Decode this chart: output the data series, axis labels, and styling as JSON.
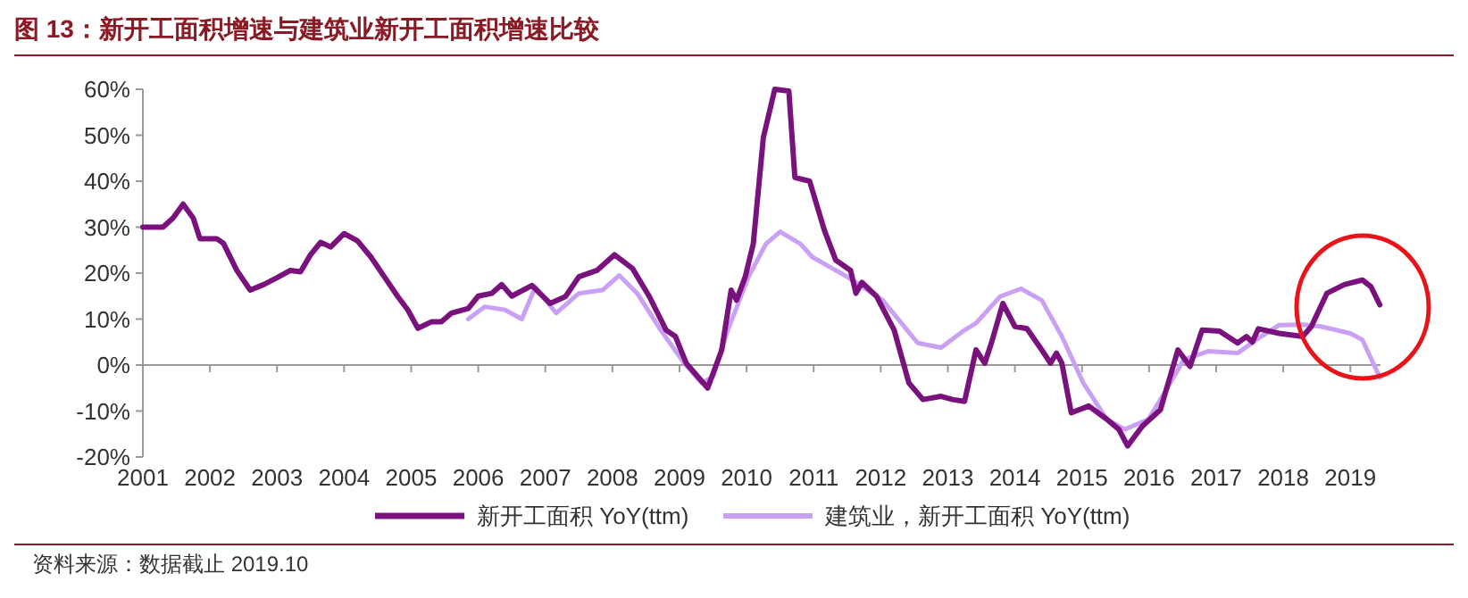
{
  "chart_data": {
    "type": "line",
    "title": "图 13：新开工面积增速与建筑业新开工面积增速比较",
    "annotations": [
      "资料来源：数据截止 2019.10"
    ],
    "xlim": [
      2001,
      2019.45
    ],
    "xticks": [
      2001,
      2002,
      2003,
      2004,
      2005,
      2006,
      2007,
      2008,
      2009,
      2010,
      2011,
      2012,
      2013,
      2014,
      2015,
      2016,
      2017,
      2018,
      2019
    ],
    "ylim": [
      -20,
      60
    ],
    "yticks": [
      {
        "value": -20,
        "label": "-20%"
      },
      {
        "value": -10,
        "label": "-10%"
      },
      {
        "value": 0,
        "label": "0%"
      },
      {
        "value": 10,
        "label": "10%"
      },
      {
        "value": 20,
        "label": "20%"
      },
      {
        "value": 30,
        "label": "30%"
      },
      {
        "value": 40,
        "label": "40%"
      },
      {
        "value": 50,
        "label": "50%"
      },
      {
        "value": 60,
        "label": "60%"
      }
    ],
    "legend": "bottom",
    "marker": "none",
    "line_style": "solid",
    "series": [
      {
        "name": "新开工面积 YoY(ttm)",
        "color": "#7a127e",
        "x": [
          2001,
          2001.3,
          2001.45,
          2001.6,
          2001.75,
          2001.85,
          2002.1,
          2002.2,
          2002.4,
          2002.6,
          2002.8,
          2003,
          2003.2,
          2003.35,
          2003.5,
          2003.65,
          2003.8,
          2004,
          2004.2,
          2004.4,
          2004.6,
          2004.8,
          2004.95,
          2005.1,
          2005.3,
          2005.45,
          2005.6,
          2005.85,
          2006,
          2006.2,
          2006.35,
          2006.5,
          2006.8,
          2007.07,
          2007.3,
          2007.5,
          2007.77,
          2008.03,
          2008.3,
          2008.55,
          2008.8,
          2008.94,
          2009.1,
          2009.42,
          2009.63,
          2009.77,
          2009.85,
          2009.98,
          2010.1,
          2010.25,
          2010.42,
          2010.63,
          2010.72,
          2010.94,
          2011.16,
          2011.33,
          2011.55,
          2011.63,
          2011.72,
          2011.94,
          2012.2,
          2012.42,
          2012.63,
          2012.9,
          2013.07,
          2013.25,
          2013.42,
          2013.55,
          2013.65,
          2013.82,
          2014,
          2014.18,
          2014.4,
          2014.53,
          2014.62,
          2014.7,
          2014.84,
          2015.1,
          2015.37,
          2015.55,
          2015.68,
          2015.9,
          2016.17,
          2016.43,
          2016.61,
          2016.79,
          2017.05,
          2017.32,
          2017.45,
          2017.54,
          2017.63,
          2017.94,
          2018.29,
          2018.42,
          2018.65,
          2018.91,
          2019.18,
          2019.31,
          2019.44
        ],
        "values": [
          30,
          30,
          32,
          35,
          32,
          27.5,
          27.5,
          26.5,
          20.6,
          16.3,
          17.5,
          19,
          20.6,
          20.3,
          24,
          26.7,
          25.7,
          28.6,
          27,
          23.5,
          19.2,
          14.9,
          12,
          8,
          9.4,
          9.4,
          11.3,
          12.3,
          15,
          15.6,
          17.5,
          15,
          17.3,
          13.4,
          14.9,
          19.2,
          20.6,
          24,
          21,
          14.9,
          7.6,
          6.2,
          0.4,
          -5,
          3.3,
          16.3,
          14.1,
          19.2,
          26.4,
          49.5,
          60,
          59.6,
          40.8,
          40,
          29.3,
          22.8,
          20.6,
          15.6,
          18,
          14.9,
          7.6,
          -3.9,
          -7.5,
          -6.8,
          -7.5,
          -7.9,
          3.3,
          0.4,
          4.8,
          13.4,
          8.4,
          7.9,
          3.3,
          0.4,
          2.6,
          0.4,
          -10.4,
          -8.9,
          -11.8,
          -14,
          -17.6,
          -13.3,
          -9.7,
          3.3,
          -0.3,
          7.6,
          7.4,
          4.8,
          6.2,
          5,
          7.9,
          6.9,
          6.2,
          8.4,
          15.6,
          17.5,
          18.5,
          17,
          13.1
        ]
      },
      {
        "name": "建筑业，新开工面积 YoY(ttm)",
        "color": "#c9a0f3",
        "x": [
          2005.85,
          2006.1,
          2006.4,
          2006.65,
          2006.85,
          2007.16,
          2007.5,
          2007.85,
          2008.1,
          2008.37,
          2008.72,
          2009.07,
          2009.33,
          2009.5,
          2009.72,
          2010.03,
          2010.29,
          2010.5,
          2010.8,
          2010.98,
          2011.5,
          2012.03,
          2012.55,
          2012.9,
          2013.25,
          2013.42,
          2013.78,
          2014.09,
          2014.4,
          2014.7,
          2015.02,
          2015.37,
          2015.64,
          2015.99,
          2016.26,
          2016.52,
          2016.88,
          2017.32,
          2017.67,
          2017.94,
          2018.29,
          2018.56,
          2019,
          2019.18,
          2019.44
        ],
        "values": [
          10,
          12.7,
          12,
          10,
          17,
          11.3,
          15.6,
          16.3,
          19.5,
          15.6,
          7.6,
          0.4,
          -3.9,
          -2.5,
          7.6,
          19.2,
          26.4,
          29,
          26.4,
          23.5,
          19.2,
          14.1,
          4.8,
          3.8,
          7.6,
          9.1,
          14.9,
          16.6,
          14.1,
          6.2,
          -3.9,
          -11.8,
          -14,
          -11.8,
          -5.3,
          1.2,
          3,
          2.6,
          6.2,
          8.7,
          8.8,
          8.4,
          6.9,
          5.5,
          -2.7
        ]
      }
    ]
  }
}
